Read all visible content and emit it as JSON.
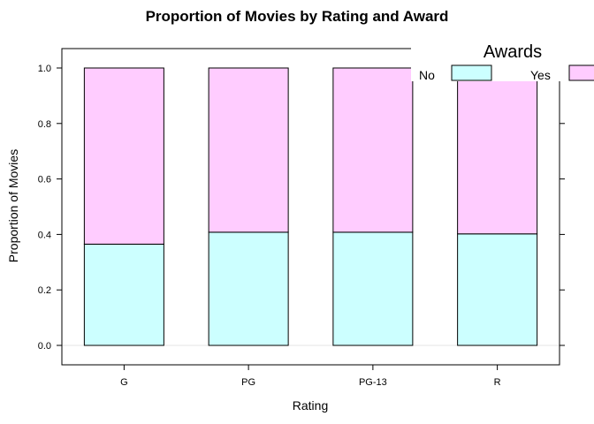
{
  "chart_data": {
    "type": "bar",
    "stacked": true,
    "title": "Proportion of Movies by Rating and Award",
    "xlabel": "Rating",
    "ylabel": "Proportion of Movies",
    "categories": [
      "G",
      "PG",
      "PG-13",
      "R"
    ],
    "series": [
      {
        "name": "No",
        "values": [
          0.365,
          0.408,
          0.408,
          0.402
        ],
        "color": "#CCFFFF"
      },
      {
        "name": "Yes",
        "values": [
          0.635,
          0.592,
          0.592,
          0.598
        ],
        "color": "#FFCCFF"
      }
    ],
    "ylim": [
      -0.07,
      1.07
    ],
    "yticks": [
      "0.0",
      "0.2",
      "0.4",
      "0.6",
      "0.8",
      "1.0"
    ],
    "legend": {
      "title": "Awards",
      "position": "top-right"
    },
    "reference_line_y": 0
  }
}
